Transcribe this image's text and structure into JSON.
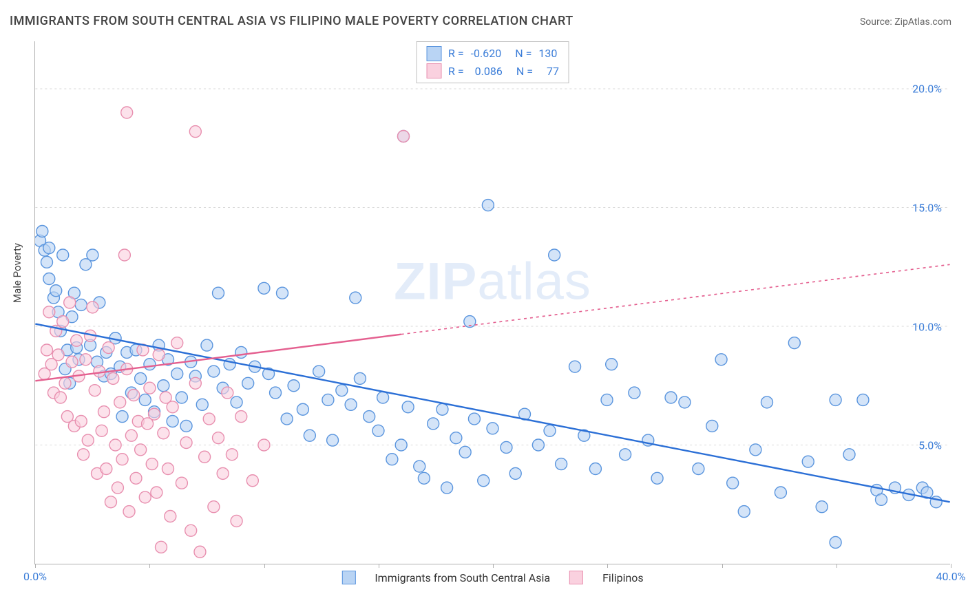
{
  "title": "IMMIGRANTS FROM SOUTH CENTRAL ASIA VS FILIPINO MALE POVERTY CORRELATION CHART",
  "source_label": "Source:",
  "source_name": "ZipAtlas.com",
  "watermark_bold": "ZIP",
  "watermark_light": "atlas",
  "ylabel": "Male Poverty",
  "chart": {
    "type": "scatter",
    "xlim": [
      0,
      40
    ],
    "ylim": [
      0,
      22
    ],
    "xticks": [
      0,
      5,
      10,
      15,
      20,
      25,
      30,
      35,
      40
    ],
    "xtick_labels": {
      "0": "0.0%",
      "40": "40.0%"
    },
    "yticks": [
      5,
      10,
      15,
      20
    ],
    "ytick_labels": {
      "5": "5.0%",
      "10": "10.0%",
      "15": "15.0%",
      "20": "20.0%"
    },
    "grid_color": "#d8d8d8",
    "axis_color": "#b0b0b0",
    "background_color": "#ffffff",
    "tick_label_color": "#3b7dd8",
    "marker_radius": 8.5,
    "marker_stroke_width": 1.4,
    "trend_line_width": 2.4,
    "series": [
      {
        "id": "south_central_asia",
        "label": "Immigrants from South Central Asia",
        "fill": "#b9d4f4",
        "stroke": "#5a95de",
        "fill_opacity": 0.62,
        "R": "-0.620",
        "N": "130",
        "trend": {
          "x0": 0,
          "y0": 10.1,
          "x1": 40,
          "y1": 2.6,
          "color": "#2b6fd6",
          "dash": "none",
          "x_solid_until": 40
        },
        "points": [
          [
            0.2,
            13.6
          ],
          [
            0.3,
            14.0
          ],
          [
            0.4,
            13.2
          ],
          [
            0.5,
            12.7
          ],
          [
            0.6,
            12.0
          ],
          [
            0.6,
            13.3
          ],
          [
            0.8,
            11.2
          ],
          [
            0.9,
            11.5
          ],
          [
            1.0,
            10.6
          ],
          [
            1.1,
            9.8
          ],
          [
            1.2,
            13.0
          ],
          [
            1.3,
            8.2
          ],
          [
            1.4,
            9.0
          ],
          [
            1.5,
            7.6
          ],
          [
            1.6,
            10.4
          ],
          [
            1.7,
            11.4
          ],
          [
            1.8,
            9.1
          ],
          [
            1.9,
            8.6
          ],
          [
            2.0,
            10.9
          ],
          [
            2.2,
            12.6
          ],
          [
            2.4,
            9.2
          ],
          [
            2.5,
            13.0
          ],
          [
            2.7,
            8.5
          ],
          [
            2.8,
            11.0
          ],
          [
            3.0,
            7.9
          ],
          [
            3.1,
            8.9
          ],
          [
            3.3,
            8.0
          ],
          [
            3.5,
            9.5
          ],
          [
            3.7,
            8.3
          ],
          [
            3.8,
            6.2
          ],
          [
            4.0,
            8.9
          ],
          [
            4.2,
            7.2
          ],
          [
            4.4,
            9.0
          ],
          [
            4.6,
            7.8
          ],
          [
            4.8,
            6.9
          ],
          [
            5.0,
            8.4
          ],
          [
            5.2,
            6.4
          ],
          [
            5.4,
            9.2
          ],
          [
            5.6,
            7.5
          ],
          [
            5.8,
            8.6
          ],
          [
            6.0,
            6.0
          ],
          [
            6.2,
            8.0
          ],
          [
            6.4,
            7.0
          ],
          [
            6.6,
            5.8
          ],
          [
            6.8,
            8.5
          ],
          [
            7.0,
            7.9
          ],
          [
            7.3,
            6.7
          ],
          [
            7.5,
            9.2
          ],
          [
            7.8,
            8.1
          ],
          [
            8.0,
            11.4
          ],
          [
            8.2,
            7.4
          ],
          [
            8.5,
            8.4
          ],
          [
            8.8,
            6.8
          ],
          [
            9.0,
            8.9
          ],
          [
            9.3,
            7.6
          ],
          [
            9.6,
            8.3
          ],
          [
            10.0,
            11.6
          ],
          [
            10.2,
            8.0
          ],
          [
            10.5,
            7.2
          ],
          [
            10.8,
            11.4
          ],
          [
            11.0,
            6.1
          ],
          [
            11.3,
            7.5
          ],
          [
            11.7,
            6.5
          ],
          [
            12.0,
            5.4
          ],
          [
            12.4,
            8.1
          ],
          [
            12.8,
            6.9
          ],
          [
            13.0,
            5.2
          ],
          [
            13.4,
            7.3
          ],
          [
            13.8,
            6.7
          ],
          [
            14.0,
            11.2
          ],
          [
            14.2,
            7.8
          ],
          [
            14.6,
            6.2
          ],
          [
            15.0,
            5.6
          ],
          [
            15.2,
            7.0
          ],
          [
            15.6,
            4.4
          ],
          [
            16.0,
            5.0
          ],
          [
            16.1,
            18.0
          ],
          [
            16.3,
            6.6
          ],
          [
            16.8,
            4.1
          ],
          [
            17.0,
            3.6
          ],
          [
            17.4,
            5.9
          ],
          [
            17.8,
            6.5
          ],
          [
            18.0,
            3.2
          ],
          [
            18.4,
            5.3
          ],
          [
            18.8,
            4.7
          ],
          [
            19.0,
            10.2
          ],
          [
            19.2,
            6.1
          ],
          [
            19.6,
            3.5
          ],
          [
            19.8,
            15.1
          ],
          [
            20.0,
            5.7
          ],
          [
            20.6,
            4.9
          ],
          [
            21.0,
            3.8
          ],
          [
            21.4,
            6.3
          ],
          [
            22.0,
            5.0
          ],
          [
            22.5,
            5.6
          ],
          [
            22.7,
            13.0
          ],
          [
            23.0,
            4.2
          ],
          [
            23.6,
            8.3
          ],
          [
            24.0,
            5.4
          ],
          [
            24.5,
            4.0
          ],
          [
            25.0,
            6.9
          ],
          [
            25.2,
            8.4
          ],
          [
            25.8,
            4.6
          ],
          [
            26.2,
            7.2
          ],
          [
            26.8,
            5.2
          ],
          [
            27.2,
            3.6
          ],
          [
            27.8,
            7.0
          ],
          [
            28.4,
            6.8
          ],
          [
            29.0,
            4.0
          ],
          [
            29.6,
            5.8
          ],
          [
            30.0,
            8.6
          ],
          [
            30.5,
            3.4
          ],
          [
            31.0,
            2.2
          ],
          [
            31.5,
            4.8
          ],
          [
            32.0,
            6.8
          ],
          [
            32.6,
            3.0
          ],
          [
            33.2,
            9.3
          ],
          [
            33.8,
            4.3
          ],
          [
            34.4,
            2.4
          ],
          [
            35.0,
            6.9
          ],
          [
            35.0,
            0.9
          ],
          [
            35.6,
            4.6
          ],
          [
            36.2,
            6.9
          ],
          [
            36.8,
            3.1
          ],
          [
            37.0,
            2.7
          ],
          [
            37.6,
            3.2
          ],
          [
            38.2,
            2.9
          ],
          [
            38.8,
            3.2
          ],
          [
            39.0,
            3.0
          ],
          [
            39.4,
            2.6
          ]
        ]
      },
      {
        "id": "filipinos",
        "label": "Filipinos",
        "fill": "#fad1df",
        "stroke": "#e88faf",
        "fill_opacity": 0.62,
        "R": "0.086",
        "N": "77",
        "trend": {
          "x0": 0,
          "y0": 7.7,
          "x1": 40,
          "y1": 12.6,
          "color": "#e45f8f",
          "dash": "4,5",
          "x_solid_until": 16
        },
        "points": [
          [
            0.4,
            8.0
          ],
          [
            0.5,
            9.0
          ],
          [
            0.6,
            10.6
          ],
          [
            0.7,
            8.4
          ],
          [
            0.8,
            7.2
          ],
          [
            0.9,
            9.8
          ],
          [
            1.0,
            8.8
          ],
          [
            1.1,
            7.0
          ],
          [
            1.2,
            10.2
          ],
          [
            1.3,
            7.6
          ],
          [
            1.4,
            6.2
          ],
          [
            1.5,
            11.0
          ],
          [
            1.6,
            8.5
          ],
          [
            1.7,
            5.8
          ],
          [
            1.8,
            9.4
          ],
          [
            1.9,
            7.9
          ],
          [
            2.0,
            6.0
          ],
          [
            2.1,
            4.6
          ],
          [
            2.2,
            8.6
          ],
          [
            2.3,
            5.2
          ],
          [
            2.4,
            9.6
          ],
          [
            2.5,
            10.8
          ],
          [
            2.6,
            7.3
          ],
          [
            2.7,
            3.8
          ],
          [
            2.8,
            8.1
          ],
          [
            2.9,
            5.6
          ],
          [
            3.0,
            6.4
          ],
          [
            3.1,
            4.0
          ],
          [
            3.2,
            9.1
          ],
          [
            3.3,
            2.6
          ],
          [
            3.4,
            7.8
          ],
          [
            3.5,
            5.0
          ],
          [
            3.6,
            3.2
          ],
          [
            3.7,
            6.8
          ],
          [
            3.8,
            4.4
          ],
          [
            3.9,
            13.0
          ],
          [
            4.0,
            8.2
          ],
          [
            4.1,
            2.2
          ],
          [
            4.2,
            5.4
          ],
          [
            4.3,
            7.1
          ],
          [
            4.0,
            19.0
          ],
          [
            4.4,
            3.6
          ],
          [
            4.5,
            6.0
          ],
          [
            4.6,
            4.8
          ],
          [
            4.7,
            9.0
          ],
          [
            4.8,
            2.8
          ],
          [
            4.9,
            5.9
          ],
          [
            5.0,
            7.4
          ],
          [
            5.1,
            4.2
          ],
          [
            5.2,
            6.3
          ],
          [
            5.3,
            3.0
          ],
          [
            5.4,
            8.8
          ],
          [
            5.5,
            0.7
          ],
          [
            5.6,
            5.5
          ],
          [
            5.7,
            7.0
          ],
          [
            5.8,
            4.0
          ],
          [
            5.9,
            2.0
          ],
          [
            6.0,
            6.6
          ],
          [
            6.2,
            9.3
          ],
          [
            6.4,
            3.4
          ],
          [
            6.6,
            5.1
          ],
          [
            6.8,
            1.4
          ],
          [
            7.0,
            7.6
          ],
          [
            7.0,
            18.2
          ],
          [
            7.2,
            0.5
          ],
          [
            7.4,
            4.5
          ],
          [
            7.6,
            6.1
          ],
          [
            7.8,
            2.4
          ],
          [
            8.0,
            5.3
          ],
          [
            8.2,
            3.8
          ],
          [
            8.4,
            7.2
          ],
          [
            8.6,
            4.6
          ],
          [
            8.8,
            1.8
          ],
          [
            9.0,
            6.2
          ],
          [
            9.5,
            3.5
          ],
          [
            10.0,
            5.0
          ],
          [
            16.1,
            18.0
          ]
        ]
      }
    ]
  },
  "legend": {
    "R_label": "R =",
    "N_label": "N ="
  }
}
